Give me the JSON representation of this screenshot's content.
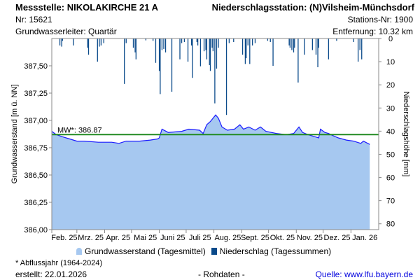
{
  "header": {
    "station": "Messstelle: NIKOLAKIRCHE 21 A",
    "nr": "Nr: 15621",
    "aquifer": "Grundwasserleiter: Quartär",
    "precip_station": "Niederschlagsstation: (N)Vilsheim-Münchsdorf",
    "precip_nr": "Stations-Nr: 1900",
    "distance": "Entfernung: 10.32 km"
  },
  "legend": {
    "groundwater": "Grundwasserstand (Tagesmittel)",
    "precip": "Niederschlag (Tagessummen)"
  },
  "footer": {
    "note": "* Abflussjahr (1964-2024)",
    "created": "erstellt:  22.01.2026",
    "raw": "- Rohdaten -",
    "source": "Quelle: www.lfu.bayern.de"
  },
  "chart_data": {
    "type": "area",
    "ylabel": "Grundwasserstand [m ü. NN]",
    "y2label": "Niederschlagshöhe [mm]",
    "ylim": [
      386.0,
      387.75
    ],
    "y2lim": [
      0,
      82.5
    ],
    "yticks": [
      "386,00",
      "386,25",
      "386,50",
      "386,75",
      "387,00",
      "387,25",
      "387,50"
    ],
    "y2ticks": [
      "0",
      "10",
      "20",
      "30",
      "40",
      "50",
      "60",
      "70",
      "80"
    ],
    "xticks": [
      "Feb. 25",
      "Mrz. 25",
      "Apr. 25",
      "Mai 25",
      "Juni 25",
      "Juli 25",
      "Aug. 25",
      "Sept. 25",
      "Okt. 25",
      "Nov. 25",
      "Dez. 25",
      "Jan. 26"
    ],
    "x_days_total": 365,
    "mean": {
      "label": "MW*: 386.87",
      "value": 386.87,
      "color": "#228b22"
    },
    "colors": {
      "fill": "#a6c8f0",
      "line": "#1a1aff",
      "precip": "#0a4a8a"
    },
    "groundwater_series": [
      [
        0,
        386.9
      ],
      [
        5,
        386.87
      ],
      [
        12,
        386.85
      ],
      [
        20,
        386.83
      ],
      [
        28,
        386.81
      ],
      [
        36,
        386.81
      ],
      [
        52,
        386.8
      ],
      [
        67,
        386.8
      ],
      [
        75,
        386.79
      ],
      [
        83,
        386.81
      ],
      [
        98,
        386.81
      ],
      [
        110,
        386.82
      ],
      [
        118,
        386.83
      ],
      [
        120,
        386.84
      ],
      [
        123,
        386.92
      ],
      [
        130,
        386.89
      ],
      [
        145,
        386.9
      ],
      [
        153,
        386.92
      ],
      [
        165,
        386.91
      ],
      [
        169,
        386.88
      ],
      [
        173,
        386.96
      ],
      [
        177,
        386.99
      ],
      [
        183,
        387.05
      ],
      [
        186,
        387.02
      ],
      [
        190,
        386.94
      ],
      [
        196,
        386.91
      ],
      [
        204,
        386.92
      ],
      [
        210,
        386.96
      ],
      [
        214,
        386.92
      ],
      [
        220,
        386.94
      ],
      [
        227,
        386.91
      ],
      [
        233,
        386.94
      ],
      [
        239,
        386.9
      ],
      [
        251,
        386.88
      ],
      [
        262,
        386.87
      ],
      [
        270,
        386.88
      ],
      [
        276,
        386.94
      ],
      [
        280,
        386.89
      ],
      [
        286,
        386.87
      ],
      [
        294,
        386.85
      ],
      [
        298,
        386.84
      ],
      [
        300,
        386.92
      ],
      [
        305,
        386.89
      ],
      [
        309,
        386.88
      ],
      [
        314,
        386.86
      ],
      [
        320,
        386.84
      ],
      [
        329,
        386.82
      ],
      [
        337,
        386.81
      ],
      [
        345,
        386.79
      ],
      [
        348,
        386.81
      ],
      [
        355,
        386.78
      ]
    ],
    "precip_series": [
      [
        9,
        3
      ],
      [
        11,
        3.5
      ],
      [
        12,
        1
      ],
      [
        24,
        3
      ],
      [
        40,
        4
      ],
      [
        41,
        7
      ],
      [
        51,
        10
      ],
      [
        53,
        3.5
      ],
      [
        55,
        3
      ],
      [
        58,
        2
      ],
      [
        81,
        19.6
      ],
      [
        83,
        2
      ],
      [
        91,
        4
      ],
      [
        93,
        6
      ],
      [
        94,
        9
      ],
      [
        105,
        0.8
      ],
      [
        113,
        1
      ],
      [
        116,
        10.5
      ],
      [
        120,
        14
      ],
      [
        121,
        24
      ],
      [
        123,
        5
      ],
      [
        125,
        4.5
      ],
      [
        127,
        6
      ],
      [
        134,
        23
      ],
      [
        143,
        9
      ],
      [
        145,
        2
      ],
      [
        148,
        1.5
      ],
      [
        152,
        10
      ],
      [
        156,
        3
      ],
      [
        157,
        17
      ],
      [
        162,
        1.5
      ],
      [
        163,
        3
      ],
      [
        166,
        12
      ],
      [
        170,
        5.5
      ],
      [
        172,
        5
      ],
      [
        173,
        9
      ],
      [
        176,
        11.5
      ],
      [
        177,
        14
      ],
      [
        179,
        4
      ],
      [
        180,
        5.5
      ],
      [
        182,
        28
      ],
      [
        184,
        13
      ],
      [
        186,
        4
      ],
      [
        195,
        33
      ],
      [
        198,
        2
      ],
      [
        203,
        1.5
      ],
      [
        213,
        7
      ],
      [
        216,
        11
      ],
      [
        217,
        8.5
      ],
      [
        219,
        3
      ],
      [
        221,
        11
      ],
      [
        224,
        3
      ],
      [
        227,
        2
      ],
      [
        241,
        1
      ],
      [
        244,
        1.5
      ],
      [
        247,
        11.8
      ],
      [
        265,
        3
      ],
      [
        266,
        4
      ],
      [
        268,
        5
      ],
      [
        270,
        6
      ],
      [
        271,
        4
      ],
      [
        275,
        19
      ],
      [
        282,
        7
      ],
      [
        291,
        5
      ],
      [
        295,
        7
      ],
      [
        297,
        12.4
      ],
      [
        298,
        4
      ],
      [
        309,
        9
      ],
      [
        318,
        1
      ],
      [
        337,
        1.5
      ],
      [
        342,
        10
      ],
      [
        344,
        5
      ],
      [
        346,
        9
      ]
    ]
  }
}
